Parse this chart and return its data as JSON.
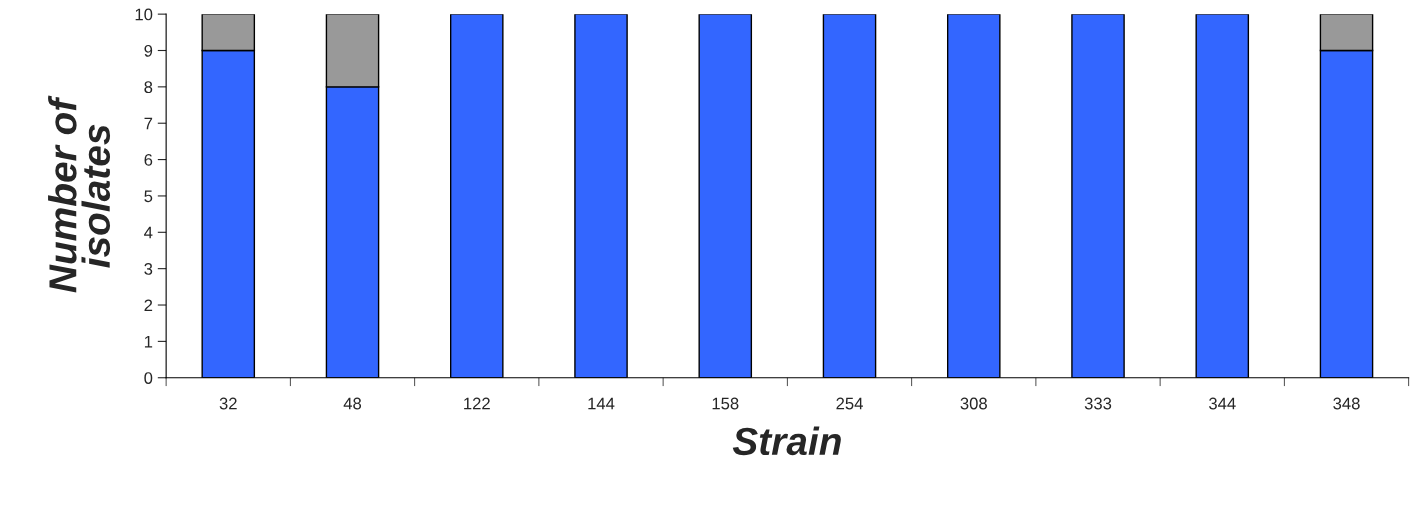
{
  "chart_data": {
    "type": "bar",
    "stacked": true,
    "xlabel": "Strain",
    "ylabel": "Number of\nisolates",
    "categories": [
      "32",
      "48",
      "122",
      "144",
      "158",
      "254",
      "308",
      "333",
      "344",
      "348"
    ],
    "series": [
      {
        "color": "#3366ff",
        "values": [
          9,
          8,
          10,
          10,
          10,
          10,
          10,
          10,
          10,
          9
        ]
      },
      {
        "color": "#999999",
        "values": [
          1,
          2,
          0,
          0,
          0,
          0,
          0,
          0,
          0,
          1
        ]
      }
    ],
    "ylim": [
      0,
      10
    ],
    "yticks": [
      0,
      1,
      2,
      3,
      4,
      5,
      6,
      7,
      8,
      9,
      10
    ],
    "grid": false
  }
}
